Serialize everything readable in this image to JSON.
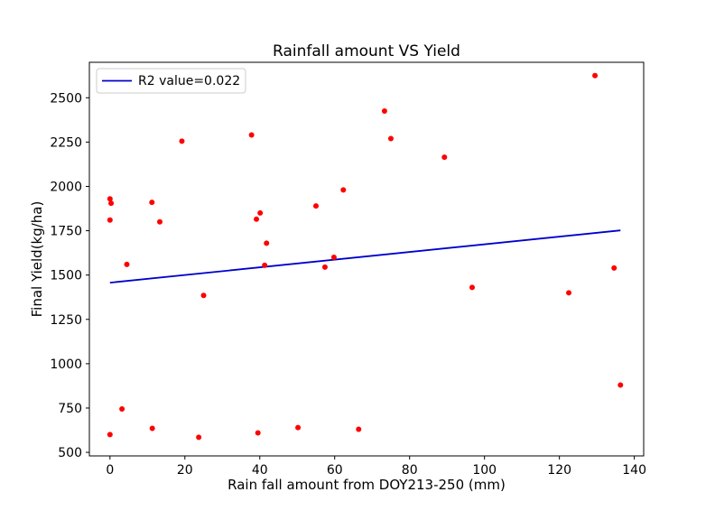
{
  "chart_data": {
    "type": "scatter",
    "title": "Rainfall amount VS Yield",
    "xlabel": "Rain fall amount from DOY213-250 (mm)",
    "ylabel": "Final Yield(kg/ha)",
    "xlim": [
      -5.5,
      142.5
    ],
    "ylim": [
      480,
      2700
    ],
    "xticks": [
      0,
      20,
      40,
      60,
      80,
      100,
      120,
      140
    ],
    "yticks": [
      500,
      750,
      1000,
      1250,
      1500,
      1750,
      2000,
      2250,
      2500
    ],
    "grid": false,
    "legend_position": "top-left",
    "points_color": "#ff0000",
    "line_color": "#0000cc",
    "points": [
      {
        "x": 0,
        "y": 1930
      },
      {
        "x": 0.3,
        "y": 1905
      },
      {
        "x": 0,
        "y": 1810
      },
      {
        "x": 0,
        "y": 600
      },
      {
        "x": 3.2,
        "y": 745
      },
      {
        "x": 4.5,
        "y": 1560
      },
      {
        "x": 11.2,
        "y": 1910
      },
      {
        "x": 11.3,
        "y": 635
      },
      {
        "x": 13.3,
        "y": 1800
      },
      {
        "x": 19.2,
        "y": 2255
      },
      {
        "x": 23.7,
        "y": 585
      },
      {
        "x": 25,
        "y": 1385
      },
      {
        "x": 37.8,
        "y": 2290
      },
      {
        "x": 39.1,
        "y": 1815
      },
      {
        "x": 39.5,
        "y": 610
      },
      {
        "x": 40.1,
        "y": 1850
      },
      {
        "x": 41.3,
        "y": 1555
      },
      {
        "x": 41.8,
        "y": 1680
      },
      {
        "x": 50.2,
        "y": 640
      },
      {
        "x": 55,
        "y": 1890
      },
      {
        "x": 57.4,
        "y": 1545
      },
      {
        "x": 59.8,
        "y": 1600
      },
      {
        "x": 62.3,
        "y": 1980
      },
      {
        "x": 66.4,
        "y": 630
      },
      {
        "x": 73.3,
        "y": 2425
      },
      {
        "x": 75,
        "y": 2270
      },
      {
        "x": 89.3,
        "y": 2165
      },
      {
        "x": 96.7,
        "y": 1430
      },
      {
        "x": 122.5,
        "y": 1400
      },
      {
        "x": 129.5,
        "y": 2625
      },
      {
        "x": 134.6,
        "y": 1540
      },
      {
        "x": 136.3,
        "y": 880
      }
    ],
    "fit_line": {
      "name": "R2 value=0.022",
      "x": [
        0,
        136.3
      ],
      "y": [
        1457,
        1752
      ]
    }
  }
}
